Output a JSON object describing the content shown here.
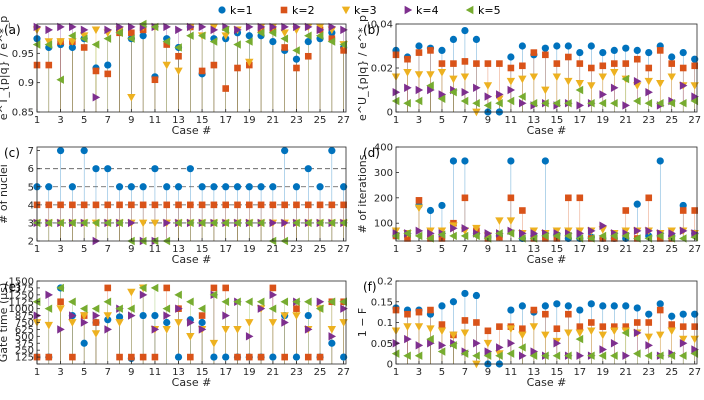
{
  "legend": [
    {
      "label": "k=1",
      "color": "#0072BD",
      "marker": "circle"
    },
    {
      "label": "k=2",
      "color": "#D95319",
      "marker": "square"
    },
    {
      "label": "k=3",
      "color": "#EDB120",
      "marker": "triangle-down"
    },
    {
      "label": "k=4",
      "color": "#7E2F8E",
      "marker": "triangle-right"
    },
    {
      "label": "k=5",
      "color": "#77AC30",
      "marker": "triangle-left"
    }
  ],
  "chart_data": [
    {
      "panel": "(a)",
      "type": "scatter",
      "xlabel": "Case #",
      "ylabel": "e^T_{p|q} / e^*_p",
      "ylim": [
        0.85,
        1.0
      ],
      "yticks": [
        0.85,
        0.9,
        0.95
      ],
      "ytick_labels": [
        "0.85",
        "0.9",
        "0.95"
      ],
      "series": [
        {
          "name": "k=1",
          "values": [
            0.975,
            0.96,
            0.965,
            0.96,
            0.975,
            0.925,
            0.93,
            0.99,
            0.975,
            0.98,
            0.91,
            0.975,
            0.96,
            0.995,
            0.915,
            0.975,
            0.975,
            0.985,
            0.98,
            0.98,
            0.97,
            0.955,
            0.94,
            0.97,
            0.975,
            0.985,
            0.96
          ]
        },
        {
          "name": "k=2",
          "values": [
            0.93,
            0.93,
            0.97,
            0.97,
            0.96,
            0.92,
            0.915,
            0.985,
            0.985,
            0.99,
            0.905,
            0.965,
            0.945,
            0.995,
            0.92,
            0.93,
            0.89,
            0.925,
            0.93,
            0.99,
            0.99,
            0.96,
            0.925,
            0.945,
            0.99,
            0.975,
            0.955
          ]
        },
        {
          "name": "k=3",
          "values": [
            0.99,
            0.97,
            0.97,
            0.97,
            0.98,
            0.99,
            0.985,
            0.99,
            0.875,
            0.995,
            0.995,
            0.93,
            0.92,
            0.995,
            0.98,
            0.995,
            0.98,
            0.99,
            0.935,
            0.995,
            0.995,
            0.985,
            0.99,
            0.995,
            0.995,
            0.99,
            0.965
          ]
        },
        {
          "name": "k=4",
          "values": [
            0.995,
            0.99,
            0.995,
            0.995,
            0.99,
            0.875,
            0.99,
            0.995,
            0.995,
            0.995,
            0.995,
            0.995,
            0.99,
            0.995,
            0.995,
            0.99,
            0.995,
            0.99,
            0.995,
            0.995,
            0.995,
            0.995,
            0.995,
            0.995,
            0.99,
            0.995,
            0.99
          ]
        },
        {
          "name": "k=5",
          "values": [
            0.965,
            0.965,
            0.905,
            0.98,
            0.975,
            0.965,
            0.975,
            0.985,
            0.975,
            1.0,
            0.995,
            0.97,
            0.96,
            0.98,
            0.98,
            0.97,
            0.99,
            0.965,
            0.97,
            0.985,
            0.985,
            0.975,
            0.955,
            0.98,
            0.98,
            0.97,
            0.965
          ]
        }
      ]
    },
    {
      "panel": "(b)",
      "type": "scatter",
      "xlabel": "Case #",
      "ylabel": "e^U_{p|q} / e^*_p",
      "ylim": [
        0,
        0.04
      ],
      "yticks": [
        0,
        0.02,
        0.04
      ],
      "ytick_labels": [
        "0",
        "0.02",
        "0.04"
      ],
      "series": [
        {
          "name": "k=1",
          "values": [
            0.028,
            0.025,
            0.03,
            0.029,
            0.028,
            0.033,
            0.037,
            0.033,
            0.0,
            0.0,
            0.025,
            0.03,
            0.026,
            0.029,
            0.03,
            0.03,
            0.027,
            0.03,
            0.027,
            0.028,
            0.029,
            0.028,
            0.027,
            0.03,
            0.025,
            0.027,
            0.024
          ]
        },
        {
          "name": "k=2",
          "values": [
            0.026,
            0.024,
            0.027,
            0.028,
            0.022,
            0.022,
            0.023,
            0.022,
            0.022,
            0.022,
            0.02,
            0.021,
            0.027,
            0.026,
            0.022,
            0.025,
            0.022,
            0.02,
            0.021,
            0.022,
            0.022,
            0.024,
            0.02,
            0.028,
            0.022,
            0.02,
            0.021
          ]
        },
        {
          "name": "k=3",
          "values": [
            0.016,
            0.018,
            0.017,
            0.017,
            0.018,
            0.015,
            0.016,
            0.0,
            0.012,
            0.006,
            0.014,
            0.015,
            0.016,
            0.01,
            0.016,
            0.014,
            0.013,
            0.012,
            0.016,
            0.018,
            0.015,
            0.012,
            0.014,
            0.013,
            0.016,
            0.012,
            0.012
          ]
        },
        {
          "name": "k=4",
          "values": [
            0.009,
            0.011,
            0.01,
            0.01,
            0.008,
            0.01,
            0.009,
            0.011,
            0.007,
            0.008,
            0.01,
            0.004,
            0.003,
            0.004,
            0.003,
            0.004,
            0.003,
            0.004,
            0.008,
            0.011,
            0.003,
            0.014,
            0.009,
            0.003,
            0.005,
            0.012,
            0.007
          ]
        },
        {
          "name": "k=5",
          "values": [
            0.005,
            0.004,
            0.005,
            0.012,
            0.006,
            0.009,
            0.005,
            0.004,
            0.003,
            0.004,
            0.005,
            0.007,
            0.004,
            0.004,
            0.004,
            0.004,
            0.01,
            0.004,
            0.004,
            0.004,
            0.015,
            0.005,
            0.004,
            0.004,
            0.004,
            0.004,
            0.005
          ]
        }
      ]
    },
    {
      "panel": "(c)",
      "type": "scatter",
      "xlabel": "Case #",
      "ylabel": "# of nuclei",
      "ylim": [
        2,
        7.2
      ],
      "yticks": [
        2,
        3,
        4,
        5,
        6,
        7
      ],
      "ytick_labels": [
        "2",
        "3",
        "4",
        "5",
        "6",
        "7"
      ],
      "hlines": [
        3,
        4,
        5,
        6
      ],
      "series": [
        {
          "name": "k=1",
          "values": [
            5,
            5,
            7,
            5,
            7,
            6,
            6,
            5,
            5,
            5,
            6,
            5,
            5,
            6,
            5,
            5,
            5,
            5,
            5,
            5,
            5,
            7,
            5,
            6,
            5,
            7,
            5
          ]
        },
        {
          "name": "k=2",
          "values": [
            4,
            4,
            4,
            4,
            4,
            4,
            4,
            4,
            4,
            4,
            4,
            4,
            4,
            4,
            4,
            4,
            4,
            4,
            4,
            4,
            4,
            4,
            4,
            4,
            4,
            4,
            4
          ]
        },
        {
          "name": "k=3",
          "values": [
            3,
            3,
            3,
            3,
            3,
            3,
            3,
            3,
            3,
            3,
            3,
            3,
            3,
            3,
            3,
            3,
            3,
            3,
            3,
            3,
            3,
            3,
            3,
            3,
            3,
            3,
            3
          ]
        },
        {
          "name": "k=4",
          "values": [
            3,
            3,
            3,
            3,
            3,
            2,
            3,
            3,
            3,
            2,
            2,
            3,
            3,
            3,
            3,
            3,
            3,
            3,
            3,
            3,
            3,
            3,
            3,
            3,
            3,
            3,
            3
          ]
        },
        {
          "name": "k=5",
          "values": [
            3,
            3,
            3,
            3,
            3,
            3,
            3,
            3,
            2,
            2,
            2,
            2,
            3,
            3,
            3,
            3,
            3,
            3,
            3,
            3,
            2,
            2,
            3,
            3,
            3,
            3,
            3
          ]
        }
      ]
    },
    {
      "panel": "(d)",
      "type": "scatter",
      "xlabel": "Case #",
      "ylabel": "# of iterations",
      "ylim": [
        30,
        400
      ],
      "yticks": [
        100,
        200,
        300,
        400
      ],
      "ytick_labels": [
        "100",
        "200",
        "300",
        "400"
      ],
      "series": [
        {
          "name": "k=1",
          "values": [
            50,
            50,
            170,
            150,
            170,
            345,
            345,
            60,
            45,
            50,
            345,
            40,
            50,
            345,
            55,
            40,
            40,
            45,
            40,
            40,
            40,
            175,
            50,
            345,
            50,
            170,
            60
          ]
        },
        {
          "name": "k=2",
          "values": [
            50,
            40,
            190,
            40,
            40,
            100,
            200,
            70,
            40,
            45,
            200,
            150,
            40,
            40,
            40,
            200,
            200,
            40,
            40,
            40,
            150,
            40,
            200,
            40,
            40,
            150,
            150
          ]
        },
        {
          "name": "k=3",
          "values": [
            70,
            60,
            160,
            70,
            70,
            90,
            70,
            80,
            50,
            110,
            110,
            60,
            70,
            60,
            70,
            70,
            70,
            70,
            75,
            60,
            70,
            70,
            70,
            60,
            70,
            70,
            60
          ]
        },
        {
          "name": "k=4",
          "values": [
            60,
            60,
            70,
            60,
            60,
            80,
            80,
            60,
            60,
            60,
            70,
            60,
            60,
            60,
            60,
            60,
            60,
            70,
            90,
            60,
            60,
            70,
            70,
            60,
            60,
            70,
            60
          ]
        },
        {
          "name": "k=5",
          "values": [
            50,
            60,
            50,
            40,
            55,
            50,
            50,
            50,
            40,
            60,
            60,
            40,
            40,
            50,
            50,
            50,
            40,
            40,
            50,
            50,
            50,
            40,
            40,
            50,
            40,
            40,
            45
          ]
        }
      ]
    },
    {
      "panel": "(e)",
      "type": "scatter",
      "xlabel": "Case #",
      "ylabel": "Gate time (μs)",
      "ylim": [
        0,
        1500
      ],
      "yticks": [
        0,
        125,
        250,
        375,
        500,
        625,
        750,
        875,
        1000,
        1125,
        1250,
        1375,
        1500
      ],
      "ytick_labels": [
        "",
        "125",
        "250",
        "375",
        "500",
        "625",
        "750",
        "875",
        "1000",
        "1125",
        "1250",
        "1375",
        "1500"
      ],
      "series": [
        {
          "name": "k=1",
          "values": [
            125,
            125,
            1375,
            875,
            375,
            750,
            800,
            850,
            100,
            875,
            875,
            750,
            125,
            800,
            750,
            125,
            125,
            125,
            125,
            125,
            125,
            875,
            125,
            875,
            125,
            375,
            125
          ]
        },
        {
          "name": "k=2",
          "values": [
            125,
            125,
            1125,
            125,
            875,
            750,
            1375,
            125,
            125,
            125,
            125,
            1375,
            1000,
            125,
            875,
            1375,
            1375,
            125,
            125,
            125,
            1375,
            125,
            1000,
            125,
            125,
            1125,
            1125
          ]
        },
        {
          "name": "k=3",
          "values": [
            750,
            700,
            1000,
            750,
            875,
            550,
            875,
            750,
            1300,
            1375,
            625,
            625,
            750,
            500,
            625,
            375,
            625,
            625,
            750,
            1000,
            750,
            875,
            875,
            625,
            1000,
            625,
            750
          ]
        },
        {
          "name": "k=4",
          "values": [
            875,
            1250,
            625,
            875,
            750,
            875,
            625,
            1000,
            875,
            1250,
            625,
            875,
            1000,
            750,
            625,
            1250,
            875,
            1125,
            500,
            1000,
            1250,
            750,
            1125,
            625,
            1125,
            500,
            1000
          ]
        },
        {
          "name": "k=5",
          "values": [
            1125,
            1000,
            1375,
            1125,
            1000,
            1000,
            1125,
            1000,
            1000,
            1375,
            1375,
            1000,
            1250,
            1125,
            1000,
            1250,
            1125,
            1125,
            1125,
            1125,
            1000,
            1125,
            1125,
            1125,
            1000,
            1125,
            1125
          ]
        }
      ]
    },
    {
      "panel": "(f)",
      "type": "scatter",
      "xlabel": "Case #",
      "ylabel": "1 − F",
      "ylim": [
        0,
        0.2
      ],
      "yticks": [
        0,
        0.05,
        0.1,
        0.15,
        0.2
      ],
      "ytick_labels": [
        "0",
        "0.05",
        "0.1",
        "0.15",
        "0.2"
      ],
      "series": [
        {
          "name": "k=1",
          "values": [
            0.135,
            0.13,
            0.13,
            0.12,
            0.14,
            0.15,
            0.17,
            0.165,
            0.0,
            0.0,
            0.13,
            0.14,
            0.125,
            0.14,
            0.145,
            0.14,
            0.13,
            0.145,
            0.14,
            0.14,
            0.14,
            0.135,
            0.12,
            0.145,
            0.115,
            0.12,
            0.12
          ]
        },
        {
          "name": "k=2",
          "values": [
            0.13,
            0.12,
            0.125,
            0.13,
            0.095,
            0.07,
            0.105,
            0.1,
            0.08,
            0.09,
            0.09,
            0.085,
            0.13,
            0.12,
            0.085,
            0.12,
            0.09,
            0.1,
            0.09,
            0.09,
            0.09,
            0.1,
            0.1,
            0.13,
            0.095,
            0.09,
            0.09
          ]
        },
        {
          "name": "k=3",
          "values": [
            0.08,
            0.09,
            0.09,
            0.085,
            0.08,
            0.07,
            0.075,
            0.0,
            0.05,
            0.025,
            0.085,
            0.07,
            0.09,
            0.07,
            0.055,
            0.075,
            0.075,
            0.08,
            0.07,
            0.08,
            0.08,
            0.075,
            0.065,
            0.07,
            0.08,
            0.06,
            0.06
          ]
        },
        {
          "name": "k=4",
          "values": [
            0.05,
            0.06,
            0.045,
            0.05,
            0.045,
            0.05,
            0.03,
            0.05,
            0.03,
            0.04,
            0.05,
            0.02,
            0.03,
            0.02,
            0.05,
            0.02,
            0.02,
            0.02,
            0.035,
            0.05,
            0.02,
            0.075,
            0.045,
            0.02,
            0.025,
            0.05,
            0.035
          ]
        },
        {
          "name": "k=5",
          "values": [
            0.025,
            0.02,
            0.02,
            0.06,
            0.03,
            0.045,
            0.025,
            0.02,
            0.02,
            0.02,
            0.025,
            0.04,
            0.02,
            0.02,
            0.02,
            0.02,
            0.06,
            0.02,
            0.02,
            0.02,
            0.075,
            0.025,
            0.02,
            0.02,
            0.02,
            0.02,
            0.025
          ]
        }
      ]
    }
  ]
}
